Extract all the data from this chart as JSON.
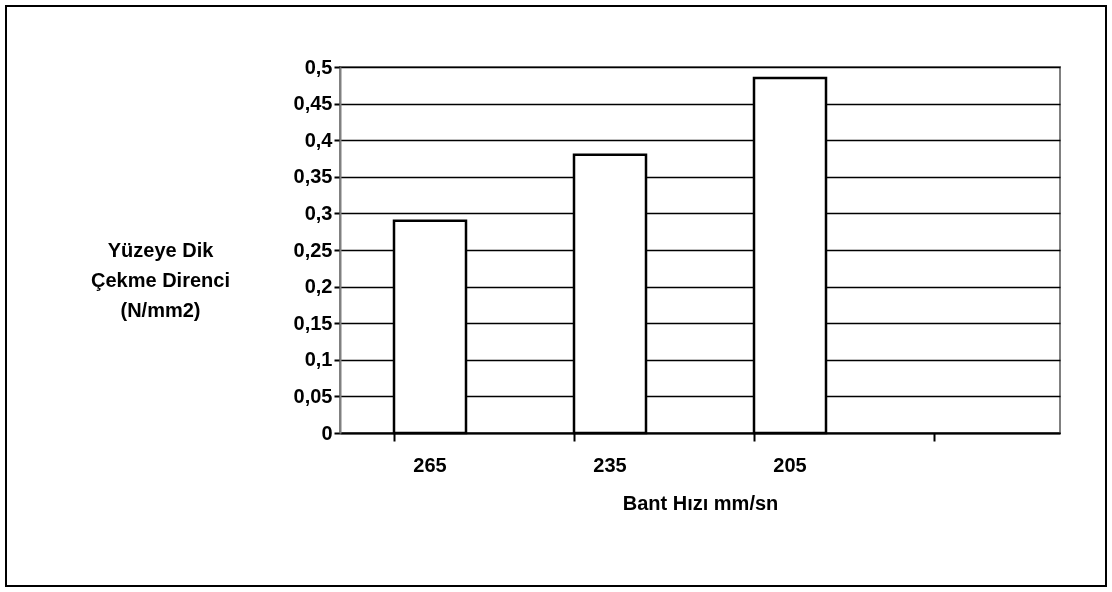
{
  "chart_data": {
    "type": "bar",
    "xlabel": "Bant Hızı mm/sn",
    "ylabel": "Yüzeye Dik Çekme Direnci (N/mm2)",
    "categories": [
      "265",
      "235",
      "205",
      null
    ],
    "values": [
      0.29,
      0.38,
      0.485,
      null
    ],
    "color": "#ffffff",
    "ylim": [
      0,
      0.5
    ],
    "yticks": [
      {
        "value": 0,
        "label": "0"
      },
      {
        "value": 0.05,
        "label": "0,05"
      },
      {
        "value": 0.1,
        "label": "0,1"
      },
      {
        "value": 0.15,
        "label": "0,15"
      },
      {
        "value": 0.2,
        "label": "0,2"
      },
      {
        "value": 0.25,
        "label": "0,25"
      },
      {
        "value": 0.3,
        "label": "0,3"
      },
      {
        "value": 0.35,
        "label": "0,35"
      },
      {
        "value": 0.4,
        "label": "0,4"
      },
      {
        "value": 0.45,
        "label": "0,45"
      },
      {
        "value": 0.5,
        "label": "0,5"
      }
    ],
    "grid": "y"
  }
}
